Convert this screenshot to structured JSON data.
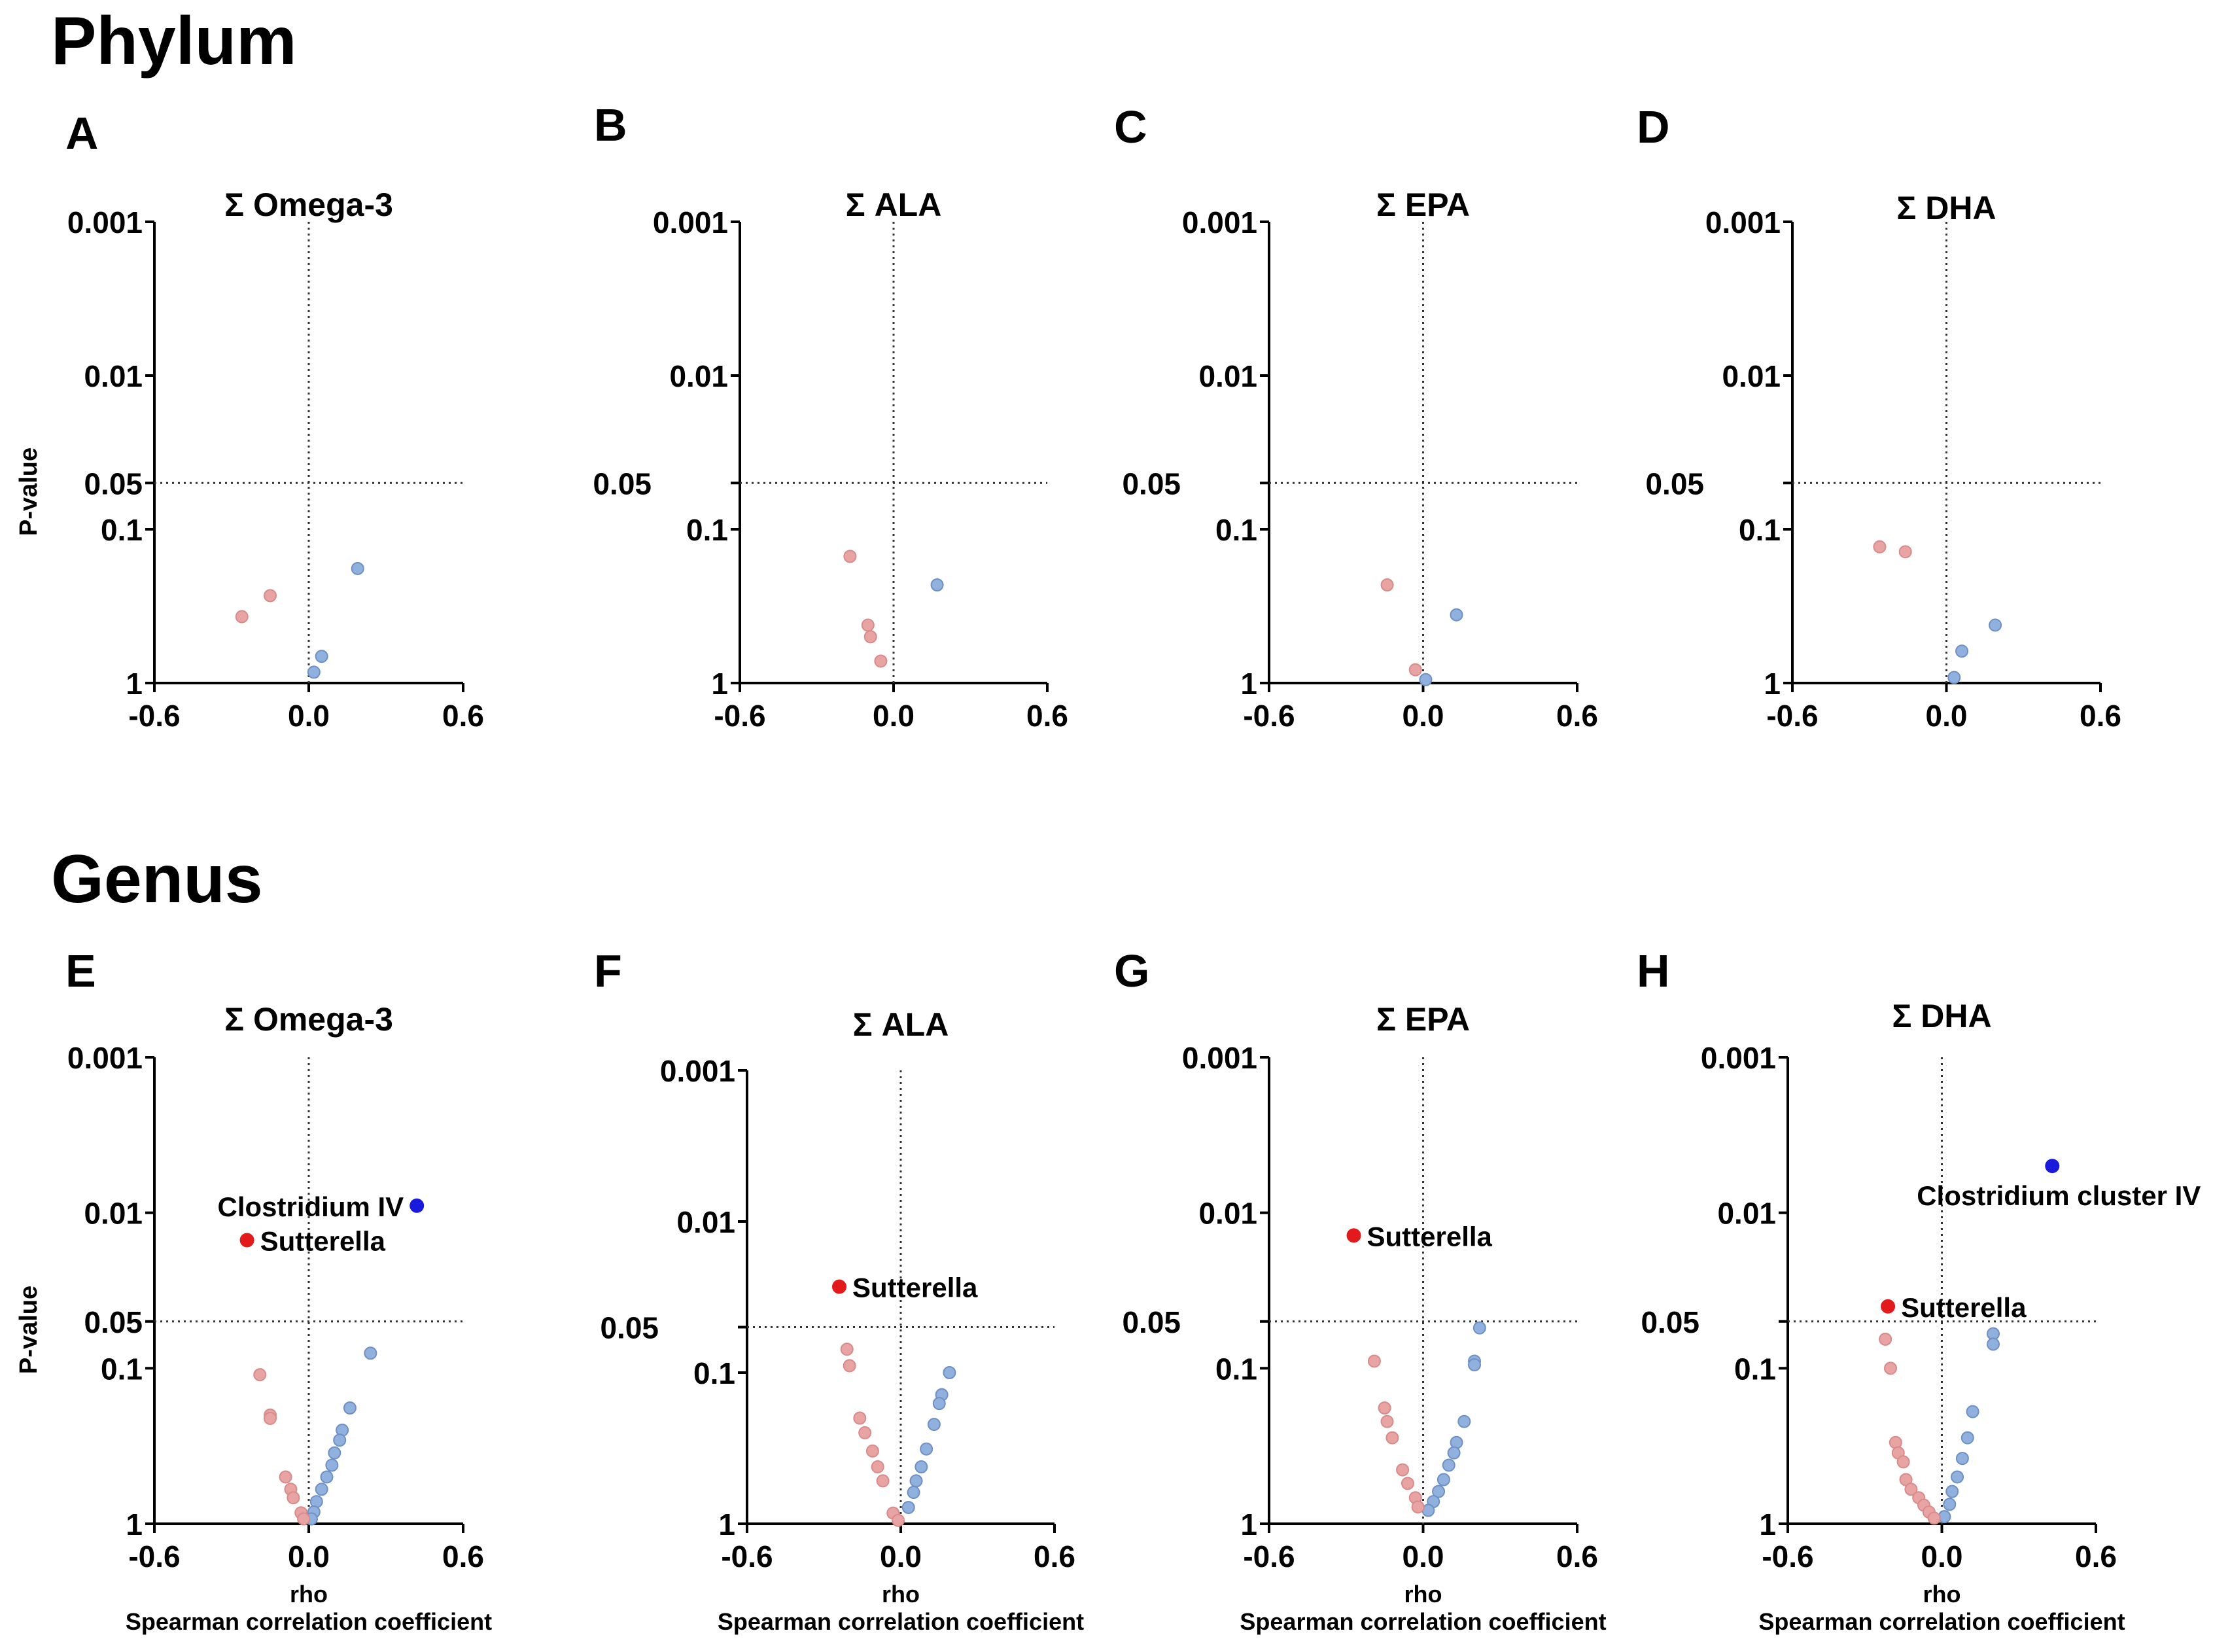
{
  "sections": {
    "phylum": "Phylum",
    "genus": "Genus"
  },
  "common": {
    "y_ticks": [
      "0.001",
      "0.01",
      "0.05",
      "0.1",
      "1"
    ],
    "x_ticks": [
      "-0.6",
      "0.0",
      "0.6"
    ],
    "y_axis_label": "P-value",
    "x_axis_label_1": "rho",
    "x_axis_label_2": "Spearman correlation coefficient"
  },
  "colors": {
    "negative": "#e8a3a3",
    "positive": "#90b0dd",
    "sig_negative": "#e31a1c",
    "sig_positive": "#1a1adc"
  },
  "chart_data": [
    {
      "panel": "A",
      "title": "Σ Omega-3",
      "type": "scatter",
      "xlabel": "",
      "ylabel": "P-value",
      "xlim": [
        -0.6,
        0.6
      ],
      "ylim": [
        1,
        0.001
      ],
      "yscale": "log",
      "significance_line": 0.05,
      "points": [
        {
          "rho": -0.26,
          "p": 0.37,
          "sign": "negative"
        },
        {
          "rho": -0.15,
          "p": 0.27,
          "sign": "negative"
        },
        {
          "rho": 0.19,
          "p": 0.18,
          "sign": "positive"
        },
        {
          "rho": 0.05,
          "p": 0.67,
          "sign": "positive"
        },
        {
          "rho": 0.02,
          "p": 0.85,
          "sign": "positive"
        }
      ]
    },
    {
      "panel": "B",
      "title": "Σ ALA",
      "type": "scatter",
      "xlabel": "",
      "ylabel": "",
      "xlim": [
        -0.6,
        0.6
      ],
      "ylim": [
        1,
        0.001
      ],
      "yscale": "log",
      "significance_line": 0.05,
      "points": [
        {
          "rho": -0.17,
          "p": 0.15,
          "sign": "negative"
        },
        {
          "rho": -0.1,
          "p": 0.42,
          "sign": "negative"
        },
        {
          "rho": -0.09,
          "p": 0.5,
          "sign": "negative"
        },
        {
          "rho": -0.05,
          "p": 0.72,
          "sign": "negative"
        },
        {
          "rho": 0.17,
          "p": 0.23,
          "sign": "positive"
        }
      ]
    },
    {
      "panel": "C",
      "title": "Σ EPA",
      "type": "scatter",
      "xlabel": "",
      "ylabel": "",
      "xlim": [
        -0.6,
        0.6
      ],
      "ylim": [
        1,
        0.001
      ],
      "yscale": "log",
      "significance_line": 0.05,
      "points": [
        {
          "rho": -0.14,
          "p": 0.23,
          "sign": "negative"
        },
        {
          "rho": -0.03,
          "p": 0.82,
          "sign": "negative"
        },
        {
          "rho": 0.13,
          "p": 0.36,
          "sign": "positive"
        },
        {
          "rho": 0.01,
          "p": 0.95,
          "sign": "positive"
        }
      ]
    },
    {
      "panel": "D",
      "title": "Σ DHA",
      "type": "scatter",
      "xlabel": "",
      "ylabel": "",
      "xlim": [
        -0.6,
        0.6
      ],
      "ylim": [
        1,
        0.001
      ],
      "yscale": "log",
      "significance_line": 0.05,
      "points": [
        {
          "rho": -0.26,
          "p": 0.13,
          "sign": "negative"
        },
        {
          "rho": -0.16,
          "p": 0.14,
          "sign": "negative"
        },
        {
          "rho": 0.19,
          "p": 0.42,
          "sign": "positive"
        },
        {
          "rho": 0.06,
          "p": 0.62,
          "sign": "positive"
        },
        {
          "rho": 0.03,
          "p": 0.92,
          "sign": "positive"
        }
      ]
    },
    {
      "panel": "E",
      "title": "Σ Omega-3",
      "type": "scatter",
      "xlabel": "rho / Spearman correlation coefficient",
      "ylabel": "P-value",
      "xlim": [
        -0.6,
        0.6
      ],
      "ylim": [
        1,
        0.001
      ],
      "yscale": "log",
      "significance_line": 0.05,
      "annotations": [
        {
          "label": "Clostridium IV",
          "rho": 0.42,
          "p": 0.009,
          "sign": "sig_positive",
          "text_side": "left"
        },
        {
          "label": "Sutterella",
          "rho": -0.24,
          "p": 0.015,
          "sign": "sig_negative",
          "text_side": "right"
        }
      ],
      "points": [
        {
          "rho": 0.24,
          "p": 0.08,
          "sign": "positive"
        },
        {
          "rho": 0.16,
          "p": 0.18,
          "sign": "positive"
        },
        {
          "rho": 0.13,
          "p": 0.25,
          "sign": "positive"
        },
        {
          "rho": 0.12,
          "p": 0.29,
          "sign": "positive"
        },
        {
          "rho": 0.1,
          "p": 0.35,
          "sign": "positive"
        },
        {
          "rho": 0.09,
          "p": 0.42,
          "sign": "positive"
        },
        {
          "rho": 0.07,
          "p": 0.5,
          "sign": "positive"
        },
        {
          "rho": 0.05,
          "p": 0.6,
          "sign": "positive"
        },
        {
          "rho": 0.03,
          "p": 0.72,
          "sign": "positive"
        },
        {
          "rho": 0.02,
          "p": 0.84,
          "sign": "positive"
        },
        {
          "rho": 0.01,
          "p": 0.93,
          "sign": "positive"
        },
        {
          "rho": -0.19,
          "p": 0.11,
          "sign": "negative"
        },
        {
          "rho": -0.15,
          "p": 0.2,
          "sign": "negative"
        },
        {
          "rho": -0.15,
          "p": 0.21,
          "sign": "negative"
        },
        {
          "rho": -0.09,
          "p": 0.5,
          "sign": "negative"
        },
        {
          "rho": -0.07,
          "p": 0.6,
          "sign": "negative"
        },
        {
          "rho": -0.06,
          "p": 0.68,
          "sign": "negative"
        },
        {
          "rho": -0.03,
          "p": 0.85,
          "sign": "negative"
        },
        {
          "rho": -0.02,
          "p": 0.93,
          "sign": "negative"
        }
      ]
    },
    {
      "panel": "F",
      "title": "Σ ALA",
      "type": "scatter",
      "xlabel": "rho / Spearman correlation coefficient",
      "ylabel": "",
      "xlim": [
        -0.6,
        0.6
      ],
      "ylim": [
        1,
        0.001
      ],
      "yscale": "log",
      "significance_line": 0.05,
      "annotations": [
        {
          "label": "Sutterella",
          "rho": -0.24,
          "p": 0.027,
          "sign": "sig_negative",
          "text_side": "right"
        }
      ],
      "points": [
        {
          "rho": 0.19,
          "p": 0.1,
          "sign": "positive"
        },
        {
          "rho": 0.16,
          "p": 0.14,
          "sign": "positive"
        },
        {
          "rho": 0.15,
          "p": 0.16,
          "sign": "positive"
        },
        {
          "rho": 0.13,
          "p": 0.22,
          "sign": "positive"
        },
        {
          "rho": 0.1,
          "p": 0.32,
          "sign": "positive"
        },
        {
          "rho": 0.08,
          "p": 0.42,
          "sign": "positive"
        },
        {
          "rho": 0.06,
          "p": 0.52,
          "sign": "positive"
        },
        {
          "rho": 0.05,
          "p": 0.62,
          "sign": "positive"
        },
        {
          "rho": 0.03,
          "p": 0.78,
          "sign": "positive"
        },
        {
          "rho": -0.21,
          "p": 0.07,
          "sign": "negative"
        },
        {
          "rho": -0.2,
          "p": 0.09,
          "sign": "negative"
        },
        {
          "rho": -0.16,
          "p": 0.2,
          "sign": "negative"
        },
        {
          "rho": -0.14,
          "p": 0.25,
          "sign": "negative"
        },
        {
          "rho": -0.11,
          "p": 0.33,
          "sign": "negative"
        },
        {
          "rho": -0.09,
          "p": 0.42,
          "sign": "negative"
        },
        {
          "rho": -0.07,
          "p": 0.52,
          "sign": "negative"
        },
        {
          "rho": -0.03,
          "p": 0.85,
          "sign": "negative"
        },
        {
          "rho": -0.01,
          "p": 0.95,
          "sign": "negative"
        }
      ]
    },
    {
      "panel": "G",
      "title": "Σ EPA",
      "type": "scatter",
      "xlabel": "rho / Spearman correlation coefficient",
      "ylabel": "",
      "xlim": [
        -0.6,
        0.6
      ],
      "ylim": [
        1,
        0.001
      ],
      "yscale": "log",
      "significance_line": 0.05,
      "annotations": [
        {
          "label": "Sutterella",
          "rho": -0.27,
          "p": 0.014,
          "sign": "sig_negative",
          "text_side": "right"
        }
      ],
      "points": [
        {
          "rho": 0.22,
          "p": 0.055,
          "sign": "positive"
        },
        {
          "rho": 0.2,
          "p": 0.09,
          "sign": "positive"
        },
        {
          "rho": 0.2,
          "p": 0.095,
          "sign": "positive"
        },
        {
          "rho": 0.16,
          "p": 0.22,
          "sign": "positive"
        },
        {
          "rho": 0.13,
          "p": 0.3,
          "sign": "positive"
        },
        {
          "rho": 0.12,
          "p": 0.35,
          "sign": "positive"
        },
        {
          "rho": 0.1,
          "p": 0.42,
          "sign": "positive"
        },
        {
          "rho": 0.08,
          "p": 0.52,
          "sign": "positive"
        },
        {
          "rho": 0.06,
          "p": 0.62,
          "sign": "positive"
        },
        {
          "rho": 0.04,
          "p": 0.72,
          "sign": "positive"
        },
        {
          "rho": 0.02,
          "p": 0.82,
          "sign": "positive"
        },
        {
          "rho": -0.19,
          "p": 0.09,
          "sign": "negative"
        },
        {
          "rho": -0.15,
          "p": 0.18,
          "sign": "negative"
        },
        {
          "rho": -0.14,
          "p": 0.22,
          "sign": "negative"
        },
        {
          "rho": -0.12,
          "p": 0.28,
          "sign": "negative"
        },
        {
          "rho": -0.08,
          "p": 0.45,
          "sign": "negative"
        },
        {
          "rho": -0.06,
          "p": 0.55,
          "sign": "negative"
        },
        {
          "rho": -0.03,
          "p": 0.68,
          "sign": "negative"
        },
        {
          "rho": -0.02,
          "p": 0.78,
          "sign": "negative"
        }
      ]
    },
    {
      "panel": "H",
      "title": "Σ DHA",
      "type": "scatter",
      "xlabel": "rho / Spearman correlation coefficient",
      "ylabel": "",
      "xlim": [
        -0.6,
        0.6
      ],
      "ylim": [
        1,
        0.001
      ],
      "yscale": "log",
      "significance_line": 0.05,
      "annotations": [
        {
          "label": "Clostridium cluster IV",
          "rho": 0.43,
          "p": 0.005,
          "sign": "sig_positive",
          "text_side": "below"
        },
        {
          "label": "Sutterella",
          "rho": -0.21,
          "p": 0.04,
          "sign": "sig_negative",
          "text_side": "right"
        }
      ],
      "points": [
        {
          "rho": 0.2,
          "p": 0.06,
          "sign": "positive"
        },
        {
          "rho": 0.2,
          "p": 0.07,
          "sign": "positive"
        },
        {
          "rho": 0.12,
          "p": 0.19,
          "sign": "positive"
        },
        {
          "rho": 0.1,
          "p": 0.28,
          "sign": "positive"
        },
        {
          "rho": 0.08,
          "p": 0.38,
          "sign": "positive"
        },
        {
          "rho": 0.06,
          "p": 0.5,
          "sign": "positive"
        },
        {
          "rho": 0.04,
          "p": 0.62,
          "sign": "positive"
        },
        {
          "rho": 0.03,
          "p": 0.75,
          "sign": "positive"
        },
        {
          "rho": 0.01,
          "p": 0.9,
          "sign": "positive"
        },
        {
          "rho": -0.22,
          "p": 0.065,
          "sign": "negative"
        },
        {
          "rho": -0.2,
          "p": 0.1,
          "sign": "negative"
        },
        {
          "rho": -0.18,
          "p": 0.3,
          "sign": "negative"
        },
        {
          "rho": -0.17,
          "p": 0.35,
          "sign": "negative"
        },
        {
          "rho": -0.15,
          "p": 0.4,
          "sign": "negative"
        },
        {
          "rho": -0.14,
          "p": 0.52,
          "sign": "negative"
        },
        {
          "rho": -0.12,
          "p": 0.6,
          "sign": "negative"
        },
        {
          "rho": -0.09,
          "p": 0.68,
          "sign": "negative"
        },
        {
          "rho": -0.07,
          "p": 0.76,
          "sign": "negative"
        },
        {
          "rho": -0.05,
          "p": 0.84,
          "sign": "negative"
        },
        {
          "rho": -0.03,
          "p": 0.92,
          "sign": "negative"
        }
      ]
    }
  ]
}
